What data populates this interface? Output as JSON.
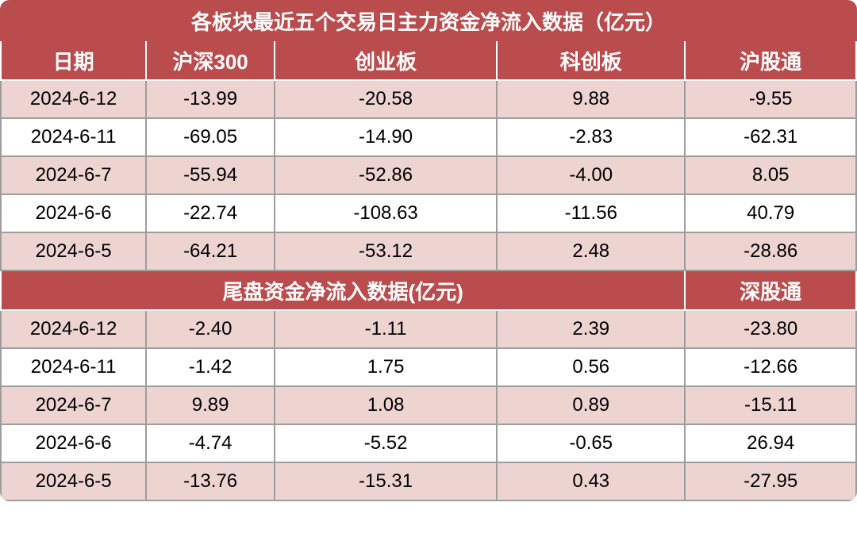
{
  "table": {
    "type": "table",
    "background_color": "#ffffff",
    "row_alt_color": "#eed4d1",
    "header_bg": "#bb4c4d",
    "header_fg": "#ffffff",
    "border_color": "#9d9d9d",
    "header_border_color": "#ffffff",
    "font_family": "Microsoft YaHei",
    "title_fontsize": 26,
    "header_fontsize": 26,
    "cell_fontsize": 24,
    "corner_radius": 12,
    "column_widths_pct": [
      17,
      15,
      26,
      22,
      20
    ],
    "title": "各板块最近五个交易日主力资金净流入数据（亿元）",
    "columns": [
      "日期",
      "沪深300",
      "创业板",
      "科创板",
      "沪股通"
    ],
    "rows_top": [
      [
        "2024-6-12",
        "-13.99",
        "-20.58",
        "9.88",
        "-9.55"
      ],
      [
        "2024-6-11",
        "-69.05",
        "-14.90",
        "-2.83",
        "-62.31"
      ],
      [
        "2024-6-7",
        "-55.94",
        "-52.86",
        "-4.00",
        "8.05"
      ],
      [
        "2024-6-6",
        "-22.74",
        "-108.63",
        "-11.56",
        "40.79"
      ],
      [
        "2024-6-5",
        "-64.21",
        "-53.12",
        "2.48",
        "-28.86"
      ]
    ],
    "subtitle_left": "尾盘资金净流入数据(亿元)",
    "subtitle_right": "深股通",
    "rows_bottom": [
      [
        "2024-6-12",
        "-2.40",
        "-1.11",
        "2.39",
        "-23.80"
      ],
      [
        "2024-6-11",
        "-1.42",
        "1.75",
        "0.56",
        "-12.66"
      ],
      [
        "2024-6-7",
        "9.89",
        "1.08",
        "0.89",
        "-15.11"
      ],
      [
        "2024-6-6",
        "-4.74",
        "-5.52",
        "-0.65",
        "26.94"
      ],
      [
        "2024-6-5",
        "-13.76",
        "-15.31",
        "0.43",
        "-27.95"
      ]
    ]
  }
}
